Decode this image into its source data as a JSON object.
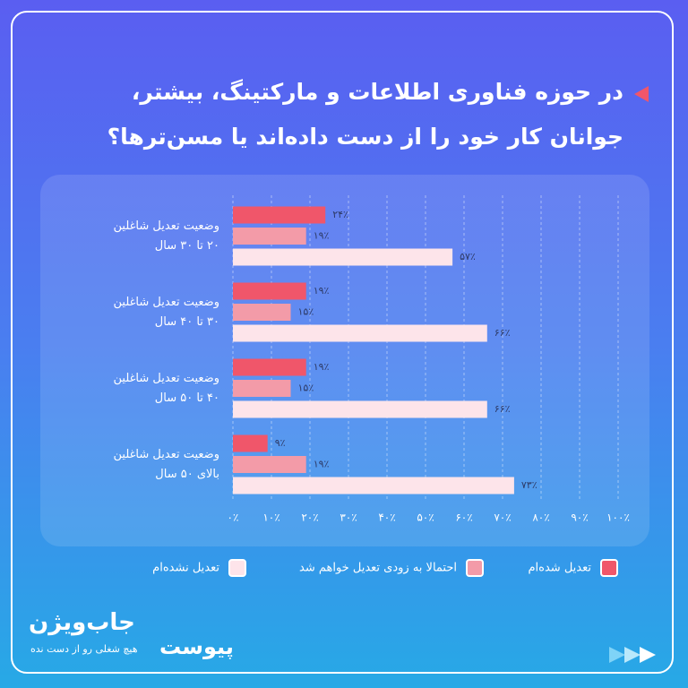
{
  "chart_data": {
    "type": "bar",
    "orientation": "horizontal",
    "title": "در حوزه فناوری اطلاعات و مارکتینگ، بیشتر، جوانان کار خود را از دست داده‌اند یا مسن‌ترها؟",
    "categories": [
      "وضعیت تعدیل شاغلین\n۲۰ تا ۳۰ سال",
      "وضعیت تعدیل شاغلین\n۳۰ تا ۴۰ سال",
      "وضعیت تعدیل شاغلین\n۴۰ تا ۵۰ سال",
      "وضعیت تعدیل شاغلین\nبالای ۵۰ سال"
    ],
    "series": [
      {
        "name": "تعدیل شده‌ام",
        "color": "#f0566a",
        "values": [
          24,
          19,
          19,
          9
        ],
        "value_labels": [
          "۲۴٪",
          "۱۹٪",
          "۱۹٪",
          "۹٪"
        ]
      },
      {
        "name": "احتمالا به زودی تعدیل خواهم شد",
        "color": "#f39ba8",
        "values": [
          19,
          15,
          15,
          19
        ],
        "value_labels": [
          "۱۹٪",
          "۱۵٪",
          "۱۵٪",
          "۱۹٪"
        ]
      },
      {
        "name": "تعدیل نشده‌ام",
        "color": "#fde4ea",
        "values": [
          57,
          66,
          66,
          73
        ],
        "value_labels": [
          "۵۷٪",
          "۶۶٪",
          "۶۶٪",
          "۷۳٪"
        ]
      }
    ],
    "xlim": [
      0,
      100
    ],
    "xticks": [
      {
        "value": 0,
        "label": "۰٪"
      },
      {
        "value": 10,
        "label": "۱۰٪"
      },
      {
        "value": 20,
        "label": "۲۰٪"
      },
      {
        "value": 30,
        "label": "۳۰٪"
      },
      {
        "value": 40,
        "label": "۴۰٪"
      },
      {
        "value": 50,
        "label": "۵۰٪"
      },
      {
        "value": 60,
        "label": "۶۰٪"
      },
      {
        "value": 70,
        "label": "۷۰٪"
      },
      {
        "value": 80,
        "label": "۸۰٪"
      },
      {
        "value": 90,
        "label": "۹۰٪"
      },
      {
        "value": 100,
        "label": "۱۰۰٪"
      }
    ],
    "grid": true
  },
  "footer": {
    "brand": "جاب‌ویژن",
    "tagline": "هیچ شغلی رو از دست نده",
    "partner": "پیوست"
  }
}
